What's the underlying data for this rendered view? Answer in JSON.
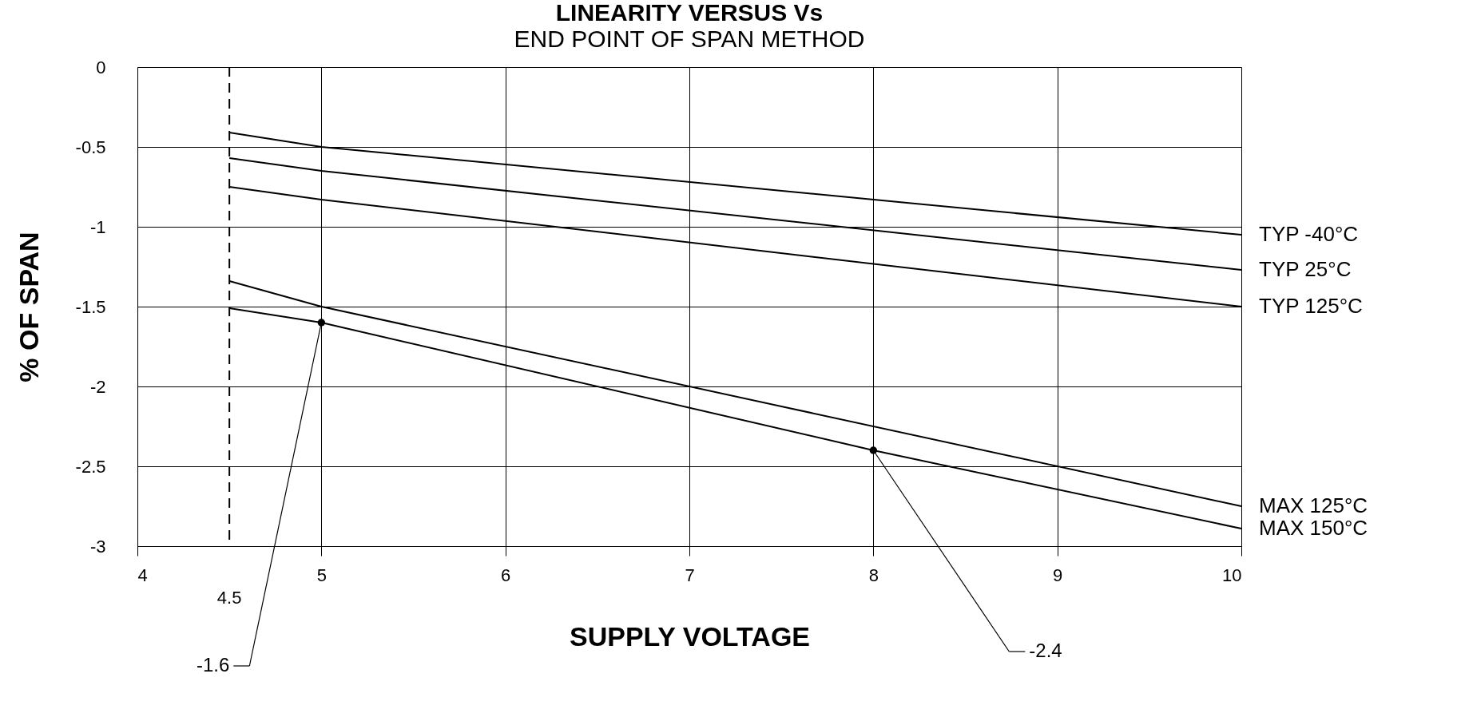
{
  "chart_data": {
    "type": "line",
    "title": "LINEARITY VERSUS Vs",
    "subtitle": "END POINT OF SPAN METHOD",
    "xlabel": "SUPPLY VOLTAGE",
    "ylabel": "% OF SPAN",
    "xlim": [
      4,
      10
    ],
    "xticks": [
      4,
      5,
      6,
      7,
      8,
      9,
      10
    ],
    "ylim": [
      -3,
      0
    ],
    "yticks": [
      0,
      -0.5,
      -1,
      -1.5,
      -2,
      -2.5,
      -3
    ],
    "grid": true,
    "legend": false,
    "marker": "none",
    "line_style": "solid",
    "series": [
      {
        "name": "TYP -40°C",
        "color": "#000000",
        "x": [
          4.5,
          5,
          10
        ],
        "values": [
          -0.41,
          -0.5,
          -1.05
        ]
      },
      {
        "name": "TYP 25°C",
        "color": "#000000",
        "x": [
          4.5,
          5,
          10
        ],
        "values": [
          -0.57,
          -0.65,
          -1.27
        ]
      },
      {
        "name": "TYP 125°C",
        "color": "#000000",
        "x": [
          4.5,
          5,
          10
        ],
        "values": [
          -0.75,
          -0.83,
          -1.5
        ]
      },
      {
        "name": "MAX 125°C",
        "color": "#000000",
        "x": [
          4.5,
          5,
          10
        ],
        "values": [
          -1.34,
          -1.5,
          -2.75
        ]
      },
      {
        "name": "MAX 150°C",
        "color": "#000000",
        "x": [
          4.5,
          5,
          8,
          10
        ],
        "values": [
          -1.51,
          -1.6,
          -2.4,
          -2.89
        ]
      },
      {
        "type": "scatter",
        "marker": "circle",
        "color": "#000000",
        "x": [
          5,
          8
        ],
        "values": [
          -1.6,
          -2.4
        ]
      }
    ],
    "ref_lines": [
      {
        "axis": "x",
        "value": 4.5,
        "label": "4.5",
        "line_style": "dashed",
        "color": "#000000"
      }
    ],
    "annotations": [
      {
        "text": "-1.6",
        "x": 5,
        "y": -1.6
      },
      {
        "text": "-2.4",
        "x": 8,
        "y": -2.4
      }
    ]
  }
}
